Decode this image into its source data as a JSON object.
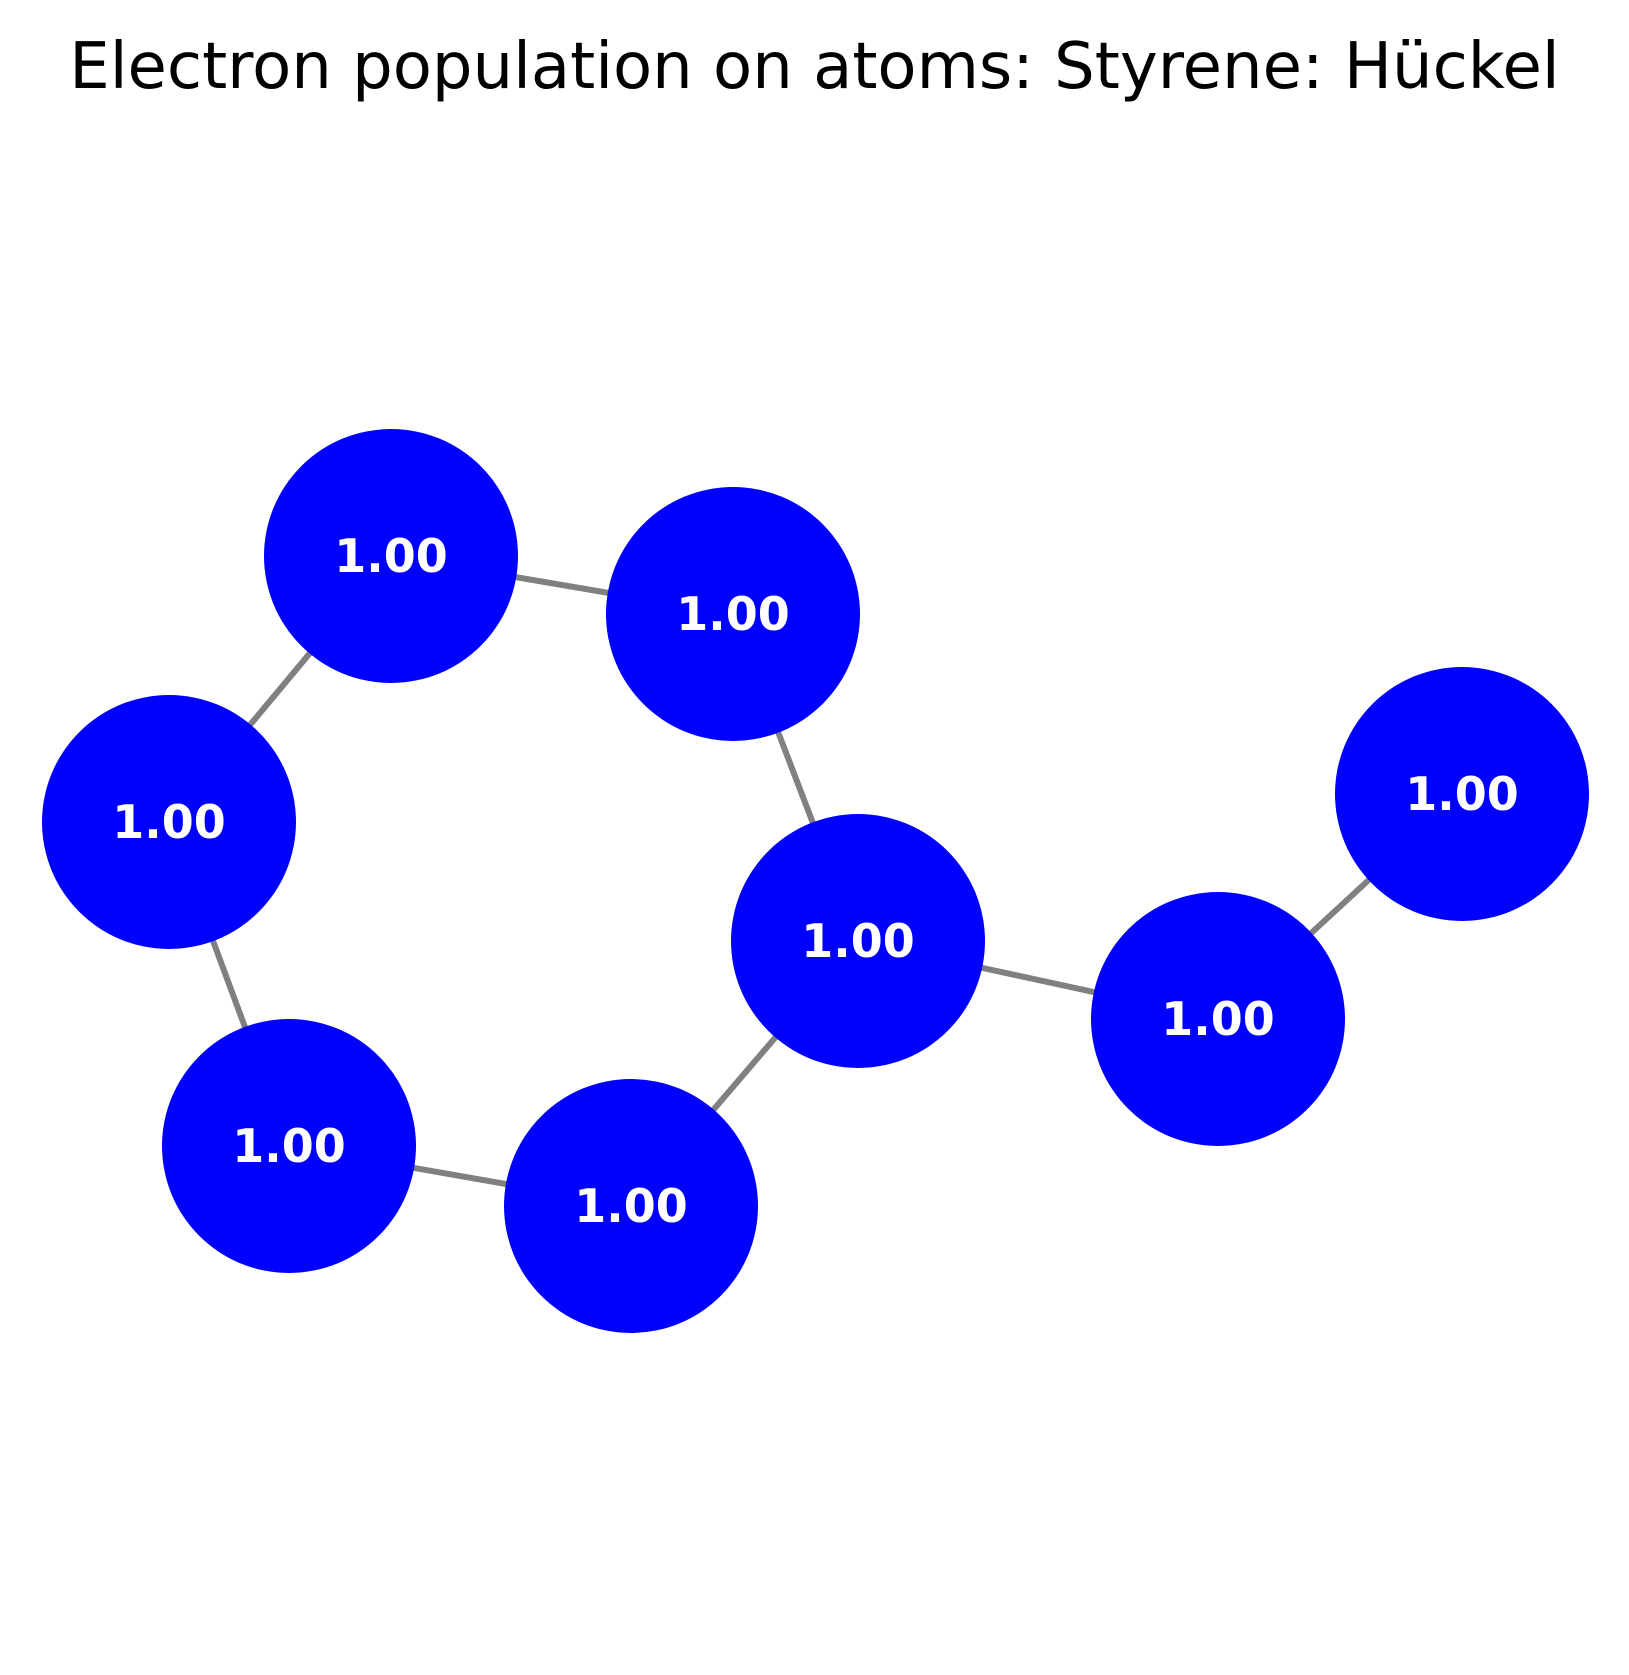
{
  "title": "Electron population on atoms: Styrene: Hückel",
  "colors": {
    "atom_fill": "#0000ff",
    "bond_stroke": "#808080",
    "label_text": "#ffffff",
    "background": "#ffffff"
  },
  "atoms": [
    {
      "id": "a1",
      "population": "1.00"
    },
    {
      "id": "a2",
      "population": "1.00"
    },
    {
      "id": "a3",
      "population": "1.00"
    },
    {
      "id": "a4",
      "population": "1.00"
    },
    {
      "id": "a5",
      "population": "1.00"
    },
    {
      "id": "a6",
      "population": "1.00"
    },
    {
      "id": "a7",
      "population": "1.00"
    },
    {
      "id": "a8",
      "population": "1.00"
    }
  ],
  "bonds": [
    [
      "a1",
      "a2"
    ],
    [
      "a2",
      "a4"
    ],
    [
      "a1",
      "a3"
    ],
    [
      "a3",
      "a5"
    ],
    [
      "a5",
      "a6"
    ],
    [
      "a6",
      "a4"
    ],
    [
      "a4",
      "a7"
    ],
    [
      "a7",
      "a8"
    ]
  ]
}
